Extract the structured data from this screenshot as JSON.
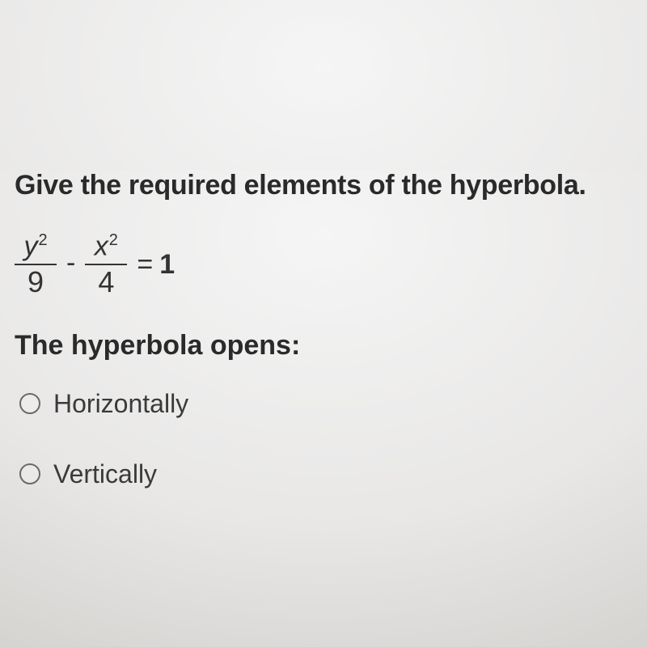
{
  "question": "Give the required elements of the hyperbola.",
  "equation": {
    "frac1": {
      "num_var": "y",
      "num_exp": "2",
      "den": "9"
    },
    "minus": "-",
    "frac2": {
      "num_var": "x",
      "num_exp": "2",
      "den": "4"
    },
    "equals": "=",
    "rhs": "1"
  },
  "subquestion": "The hyperbola opens:",
  "options": [
    {
      "label": "Horizontally"
    },
    {
      "label": "Vertically"
    }
  ],
  "colors": {
    "text": "#2a2a2a",
    "radio_border": "#6a6a6a"
  }
}
